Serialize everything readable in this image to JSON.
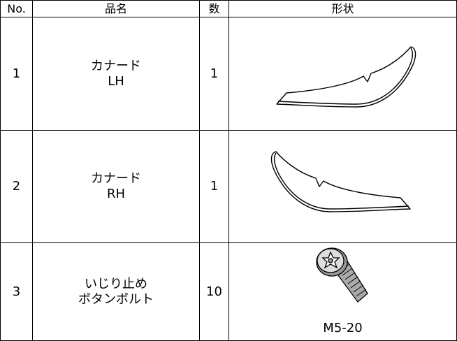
{
  "table": {
    "header": [
      "No.",
      "品名",
      "数",
      "形状"
    ],
    "rows": [
      {
        "no": "1",
        "name": [
          "カナード",
          "LH"
        ],
        "qty": "1"
      },
      {
        "no": "2",
        "name": [
          "カナード",
          "RH"
        ],
        "qty": "1"
      },
      {
        "no": "3",
        "name": [
          "いじり止め",
          "ボタンボルト"
        ],
        "qty": "10",
        "shape_label": "M5-20"
      }
    ]
  }
}
